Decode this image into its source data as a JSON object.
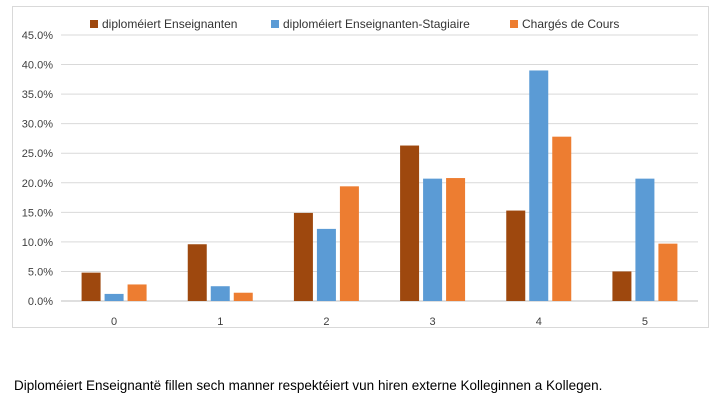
{
  "chart_data": {
    "type": "bar",
    "categories": [
      "0",
      "1",
      "2",
      "3",
      "4",
      "5"
    ],
    "series": [
      {
        "name": "diploméiert Enseignanten",
        "color": "#9e480e",
        "values": [
          4.8,
          9.6,
          14.9,
          26.3,
          15.3,
          5.0
        ]
      },
      {
        "name": "diploméiert Enseignanten-Stagiaire",
        "color": "#5b9bd5",
        "values": [
          1.2,
          2.5,
          12.2,
          20.7,
          39.0,
          20.7
        ]
      },
      {
        "name": "Chargés de Cours",
        "color": "#ed7d31",
        "values": [
          2.8,
          1.4,
          19.4,
          20.8,
          27.8,
          9.7
        ]
      }
    ],
    "ylim": [
      0,
      45
    ],
    "yticks": [
      "0.0%",
      "5.0%",
      "10.0%",
      "15.0%",
      "20.0%",
      "25.0%",
      "30.0%",
      "35.0%",
      "40.0%",
      "45.0%"
    ],
    "grid": true,
    "legend": "top"
  },
  "caption": "Diploméiert Enseignantë fillen sech manner respektéiert vun hiren externe Kolleginnen a Kollegen."
}
